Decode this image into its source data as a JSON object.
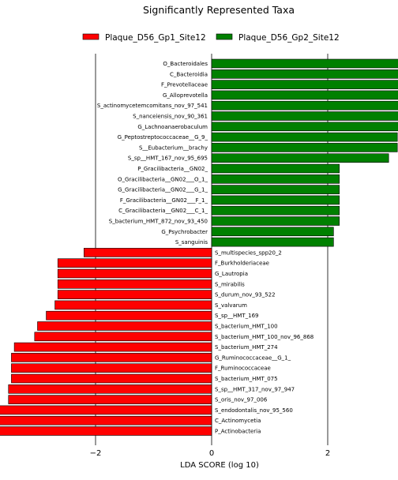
{
  "chart_data": {
    "type": "bar",
    "orientation": "horizontal",
    "title": "Significantly Represented Taxa",
    "xlabel": "LDA SCORE (log 10)",
    "ylabel": "",
    "xlim": [
      -4.4,
      5.2
    ],
    "xticks": [
      -4,
      -2,
      0,
      2,
      4
    ],
    "grid": "vertical lines at major ticks",
    "legend_position": "top",
    "series": [
      {
        "name": "Plaque_D56_Gp1_Site12",
        "color": "#ff0000"
      },
      {
        "name": "Plaque_D56_Gp2_Site12",
        "color": "#008000"
      }
    ],
    "categories": [
      "O_Bacteroidales",
      "C_Bacteroidia",
      "F_Prevotellaceae",
      "G_Alloprevotella",
      "S_actinomycetemcomitans_nov_97_541",
      "S_nanceiensis_nov_90_361",
      "G_Lachnoanaerobaculum",
      "G_Peptostreptococcaceae__G_9_",
      "S__Eubacterium__brachy",
      "S_sp__HMT_167_nov_95_695",
      "P_Gracilibacteria__GN02_",
      "O_Gracilibacteria__GN02___O_1_",
      "G_Gracilibacteria__GN02___G_1_",
      "F_Gracilibacteria__GN02___F_1_",
      "C_Gracilibacteria__GN02___C_1_",
      "S_bacterium_HMT_872_nov_93_450",
      "G_Psychrobacter",
      "S_sanguinis",
      "S_multispecies_spp20_2",
      "F_Burkholderiaceae",
      "G_Lautropia",
      "S_mirabilis",
      "S_durum_nov_93_522",
      "S_valvarum",
      "S_sp__HMT_169",
      "S_bacterium_HMT_100",
      "S_bacterium_HMT_100_nov_96_868",
      "S_bacterium_HMT_274",
      "G_Ruminococcaceae__G_1_",
      "F_Ruminococcaceae",
      "S_bacterium_HMT_075",
      "S_sp__HMT_317_nov_97_947",
      "S_oris_nov_97_006",
      "S_endodontalis_nov_95_560",
      "C_Actinomycetia",
      "P_Actinobacteria"
    ],
    "values": [
      4.6,
      4.6,
      4.4,
      4.3,
      3.8,
      3.65,
      3.35,
      3.2,
      3.2,
      3.05,
      2.2,
      2.2,
      2.2,
      2.2,
      2.2,
      2.2,
      2.1,
      2.1,
      -2.2,
      -2.65,
      -2.65,
      -2.65,
      -2.65,
      -2.7,
      -2.85,
      -3.0,
      -3.05,
      -3.4,
      -3.45,
      -3.45,
      -3.45,
      -3.5,
      -3.5,
      -3.8,
      -4.1,
      -4.1
    ]
  }
}
